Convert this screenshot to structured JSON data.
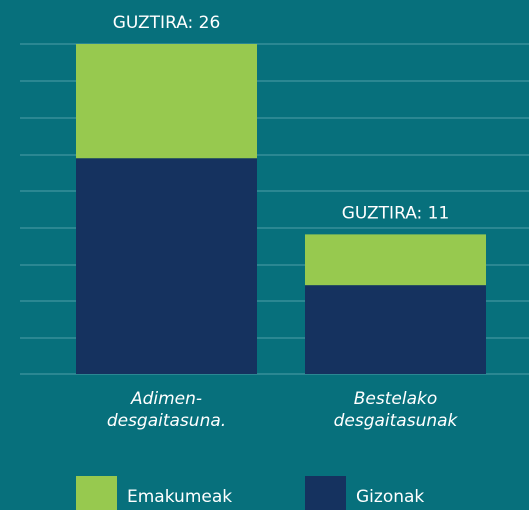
{
  "chart_data": {
    "type": "stacked_bar",
    "categories": [
      [
        "Adimen-",
        "desgaitasuna."
      ],
      [
        "Bestelako",
        "desgaitasunak"
      ]
    ],
    "series": [
      {
        "name": "Gizonak",
        "color": "#15325f",
        "values": [
          17,
          7
        ]
      },
      {
        "name": "Emakumeak",
        "color": "#97c94f",
        "values": [
          9,
          4
        ]
      }
    ],
    "total_labels": [
      "GUZTIRA: 26",
      "GUZTIRA: 11"
    ],
    "ylim": [
      0,
      26
    ]
  }
}
